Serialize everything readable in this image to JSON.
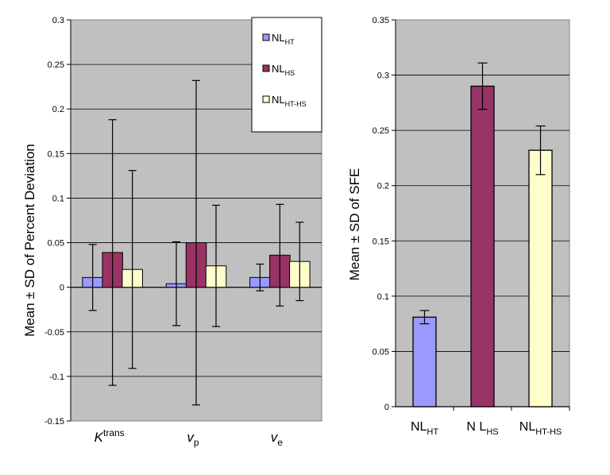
{
  "chart_data": [
    {
      "type": "bar",
      "title": "",
      "ylabel": "Mean ± SD of Percent Deviation",
      "ylim": [
        -0.15,
        0.3
      ],
      "yticks": [
        "0.3",
        "0.25",
        "0.2",
        "0.15",
        "0.1",
        "0.05",
        "0",
        "-0.05",
        "-0.1",
        "-0.15"
      ],
      "grid": true,
      "legend_position": "top-right",
      "categories": [
        {
          "base": "K",
          "sup": "trans",
          "sub": ""
        },
        {
          "base": "v",
          "sup": "",
          "sub": "p"
        },
        {
          "base": "v",
          "sup": "",
          "sub": "e"
        }
      ],
      "series": [
        {
          "name": "NL",
          "sub": "HT",
          "color": "#9999ff",
          "values": [
            0.011,
            0.004,
            0.011
          ],
          "sd": [
            0.037,
            0.047,
            0.015
          ]
        },
        {
          "name": "NL",
          "sub": "HS",
          "color": "#993366",
          "values": [
            0.039,
            0.05,
            0.036
          ],
          "sd": [
            0.149,
            0.182,
            0.057
          ]
        },
        {
          "name": "NL",
          "sub": "HT-HS",
          "color": "#ffffcc",
          "values": [
            0.02,
            0.024,
            0.029
          ],
          "sd": [
            0.111,
            0.068,
            0.044
          ]
        }
      ]
    },
    {
      "type": "bar",
      "title": "",
      "ylabel": "Mean ± SD of SFE",
      "ylim": [
        0,
        0.35
      ],
      "yticks": [
        "0.35",
        "0.3",
        "0.25",
        "0.2",
        "0.15",
        "0.1",
        "0.05",
        "0"
      ],
      "grid": true,
      "categories": [
        {
          "base": "NL",
          "sub": "HT",
          "color": "#9999ff"
        },
        {
          "base": "N L",
          "sub": "HS",
          "color": "#993366"
        },
        {
          "base": "NL",
          "sub": "HT-HS",
          "color": "#ffffcc"
        }
      ],
      "values": [
        0.081,
        0.29,
        0.232
      ],
      "sd": [
        0.006,
        0.021,
        0.022
      ]
    }
  ]
}
